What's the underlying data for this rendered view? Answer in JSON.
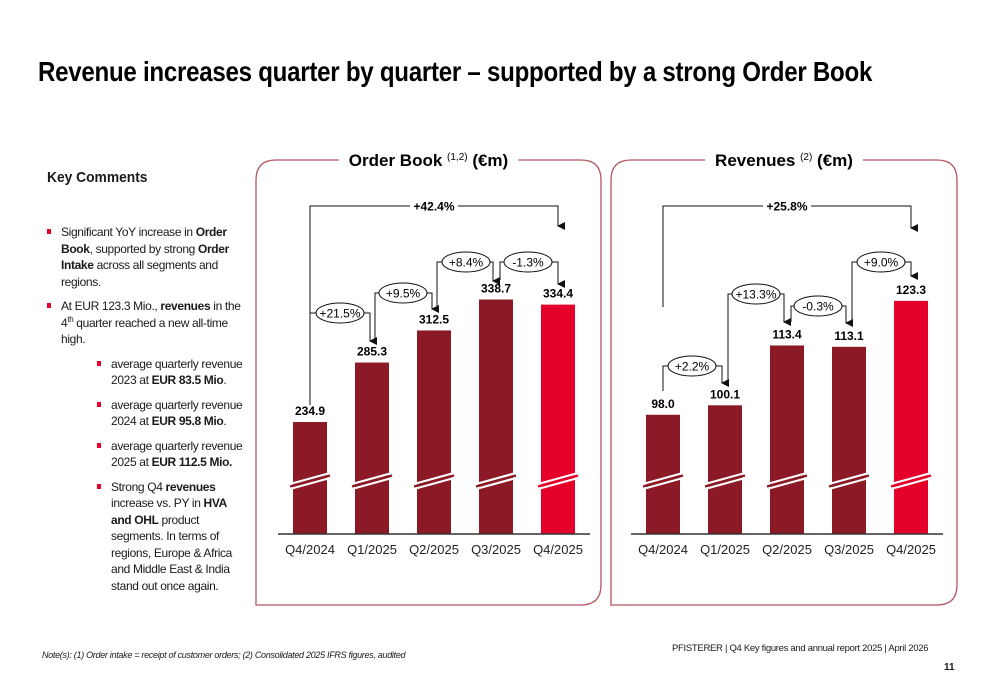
{
  "title": "Revenue increases quarter by quarter – supported by a strong Order Book",
  "key_comments": {
    "heading": "Key Comments",
    "bullets": [
      {
        "level": 1,
        "segments": [
          {
            "text": "Significant YoY increase in "
          },
          {
            "text": "Order Book",
            "bold": true
          },
          {
            "text": ", supported by strong "
          },
          {
            "text": "Order Intake",
            "bold": true
          },
          {
            "text": " across all segments and regions."
          }
        ]
      },
      {
        "level": 1,
        "segments": [
          {
            "text": "At EUR 123.3 Mio., "
          },
          {
            "text": "revenues",
            "bold": true
          },
          {
            "text": " in the 4"
          },
          {
            "text": "th",
            "sup": true
          },
          {
            "text": " quarter reached a new all-time high."
          }
        ]
      },
      {
        "level": 2,
        "segments": [
          {
            "text": "average quarterly revenue 2023 at "
          },
          {
            "text": "EUR 83.5 Mio",
            "bold": true
          },
          {
            "text": "."
          }
        ]
      },
      {
        "level": 2,
        "segments": [
          {
            "text": "average quarterly revenue 2024 at "
          },
          {
            "text": "EUR 95.8 Mio",
            "bold": true
          },
          {
            "text": "."
          }
        ]
      },
      {
        "level": 2,
        "segments": [
          {
            "text": "average quarterly revenue 2025 at "
          },
          {
            "text": "EUR 112.5 Mio.",
            "bold": true
          }
        ]
      },
      {
        "level": 2,
        "segments": [
          {
            "text": "Strong Q4 "
          },
          {
            "text": "revenues",
            "bold": true
          },
          {
            "text": " increase vs. PY in "
          },
          {
            "text": "HVA and OHL",
            "bold": true
          },
          {
            "text": " product segments. In terms of regions, Europe & Africa and Middle East & India stand out once again."
          }
        ]
      }
    ]
  },
  "colors": {
    "bar": "#8B1A26",
    "highlight": "#E4002B",
    "frame": "#B5545E",
    "bullet": "#E4002B"
  },
  "chart_data": [
    {
      "type": "bar",
      "title": "Order Book",
      "title_sup": "(1,2)",
      "title_unit": "(€m)",
      "categories": [
        "Q4/2024",
        "Q1/2025",
        "Q2/2025",
        "Q3/2025",
        "Q4/2025"
      ],
      "values": [
        234.9,
        285.3,
        312.5,
        338.7,
        334.4
      ],
      "value_labels": [
        "234.9",
        "285.3",
        "312.5",
        "338.7",
        "334.4"
      ],
      "highlight_index": 4,
      "broken_axis": true,
      "annotations": [
        {
          "from": 0,
          "to": 4,
          "label": "+42.4%",
          "style": "bold"
        },
        {
          "from": 0,
          "to": 1,
          "label": "+21.5%",
          "style": "ellipse"
        },
        {
          "from": 1,
          "to": 2,
          "label": "+9.5%",
          "style": "ellipse"
        },
        {
          "from": 2,
          "to": 3,
          "label": "+8.4%",
          "style": "ellipse"
        },
        {
          "from": 3,
          "to": 4,
          "label": "-1.3%",
          "style": "ellipse"
        }
      ]
    },
    {
      "type": "bar",
      "title": "Revenues",
      "title_sup": "(2)",
      "title_unit": "(€m)",
      "categories": [
        "Q4/2024",
        "Q1/2025",
        "Q2/2025",
        "Q3/2025",
        "Q4/2025"
      ],
      "values": [
        98.0,
        100.1,
        113.4,
        113.1,
        123.3
      ],
      "value_labels": [
        "98.0",
        "100.1",
        "113.4",
        "113.1",
        "123.3"
      ],
      "highlight_index": 4,
      "broken_axis": true,
      "annotations": [
        {
          "from": 0,
          "to": 4,
          "label": "+25.8%",
          "style": "bold"
        },
        {
          "from": 0,
          "to": 1,
          "label": "+2.2%",
          "style": "ellipse"
        },
        {
          "from": 1,
          "to": 2,
          "label": "+13.3%",
          "style": "ellipse"
        },
        {
          "from": 2,
          "to": 3,
          "label": "-0.3%",
          "style": "ellipse"
        },
        {
          "from": 3,
          "to": 4,
          "label": "+9.0%",
          "style": "ellipse"
        }
      ]
    }
  ],
  "footer": {
    "note": "Note(s): (1) Order intake = receipt of customer orders; (2) Consolidated 2025 IFRS figures, audited",
    "source": "PFISTERER | Q4 Key figures and annual report 2025 | April 2026",
    "page_number": "11"
  }
}
